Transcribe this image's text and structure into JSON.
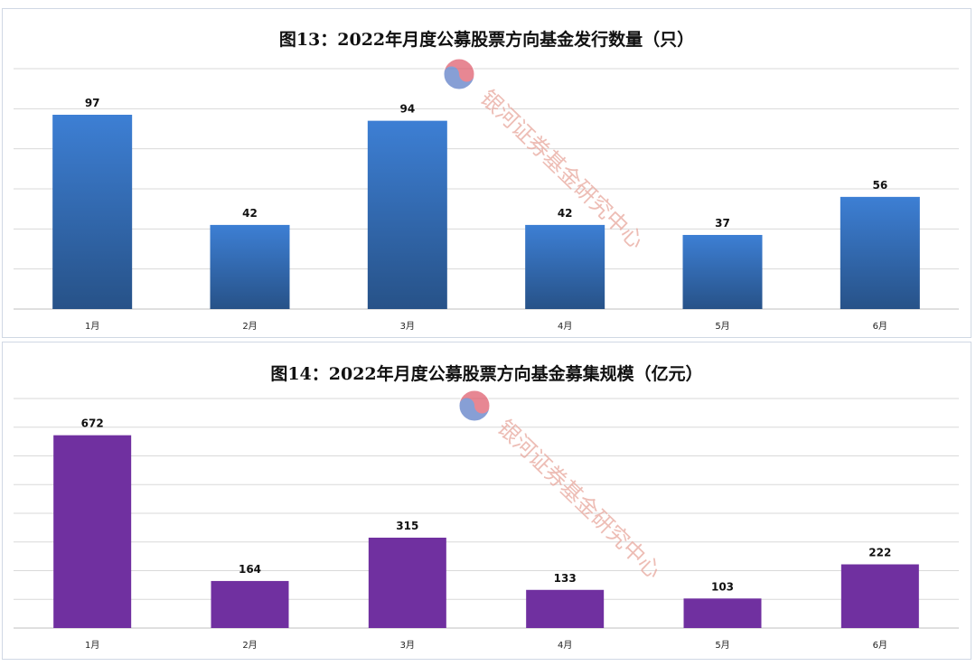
{
  "charts": [
    {
      "title": "图13：2022年月度公募股票方向基金发行数量（只）"
    },
    {
      "title": "图14：2022年月度公募股票方向基金募集规模（亿元）"
    }
  ],
  "watermark": {
    "text": "银河证券基金研究中心",
    "color": "#e8a79d"
  },
  "chart_data": [
    {
      "type": "bar",
      "title": "图13：2022年月度公募股票方向基金发行数量（只）",
      "categories": [
        "1月",
        "2月",
        "3月",
        "4月",
        "5月",
        "6月"
      ],
      "values": [
        97,
        42,
        94,
        42,
        37,
        56
      ],
      "ylim": [
        0,
        120
      ],
      "grid": true,
      "color": "#3a78c8",
      "data_labels": true
    },
    {
      "type": "bar",
      "title": "图14：2022年月度公募股票方向基金募集规模（亿元）",
      "categories": [
        "1月",
        "2月",
        "3月",
        "4月",
        "5月",
        "6月"
      ],
      "values": [
        672,
        164,
        315,
        133,
        103,
        222
      ],
      "ylim": [
        0,
        800
      ],
      "grid": true,
      "color": "#7030a0",
      "data_labels": true
    }
  ]
}
